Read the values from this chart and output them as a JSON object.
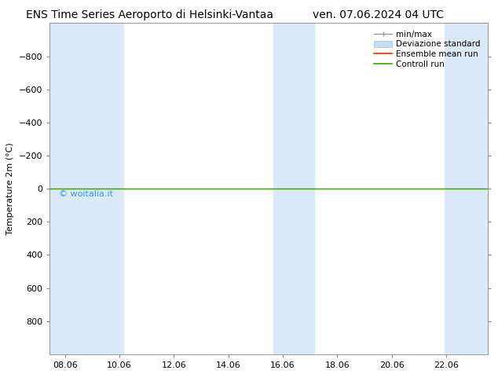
{
  "title_left": "ENS Time Series Aeroporto di Helsinki-Vantaa",
  "title_right": "ven. 07.06.2024 04 UTC",
  "ylabel": "Temperature 2m (°C)",
  "watermark": "© woitalia.it",
  "watermark_color": "#3399ff",
  "ylim_bottom": 1000,
  "ylim_top": -1000,
  "ytick_vals": [
    -800,
    -600,
    -400,
    -200,
    0,
    200,
    400,
    600,
    800
  ],
  "bg_color": "#ffffff",
  "plot_bg_color": "#ffffff",
  "shaded_bands_x": [
    [
      7.5,
      8.5
    ],
    [
      8.5,
      10.2
    ],
    [
      15.7,
      17.2
    ],
    [
      22.0,
      23.6
    ]
  ],
  "shaded_colors": [
    "#dce9f8",
    "#dce9f8",
    "#dce9f8",
    "#dce9f8"
  ],
  "flat_line_color_green": "#33aa00",
  "flat_line_color_red": "#ff2200",
  "xticks": [
    8.06,
    10.06,
    12.06,
    14.06,
    16.06,
    18.06,
    20.06,
    22.06
  ],
  "xtick_labels": [
    "08.06",
    "10.06",
    "12.06",
    "14.06",
    "16.06",
    "18.06",
    "20.06",
    "22.06"
  ],
  "xlim_left": 7.5,
  "xlim_right": 23.6,
  "legend_labels": [
    "min/max",
    "Deviazione standard",
    "Ensemble mean run",
    "Controll run"
  ],
  "title_fontsize": 10,
  "axis_fontsize": 8,
  "tick_fontsize": 8,
  "watermark_fontsize": 8
}
